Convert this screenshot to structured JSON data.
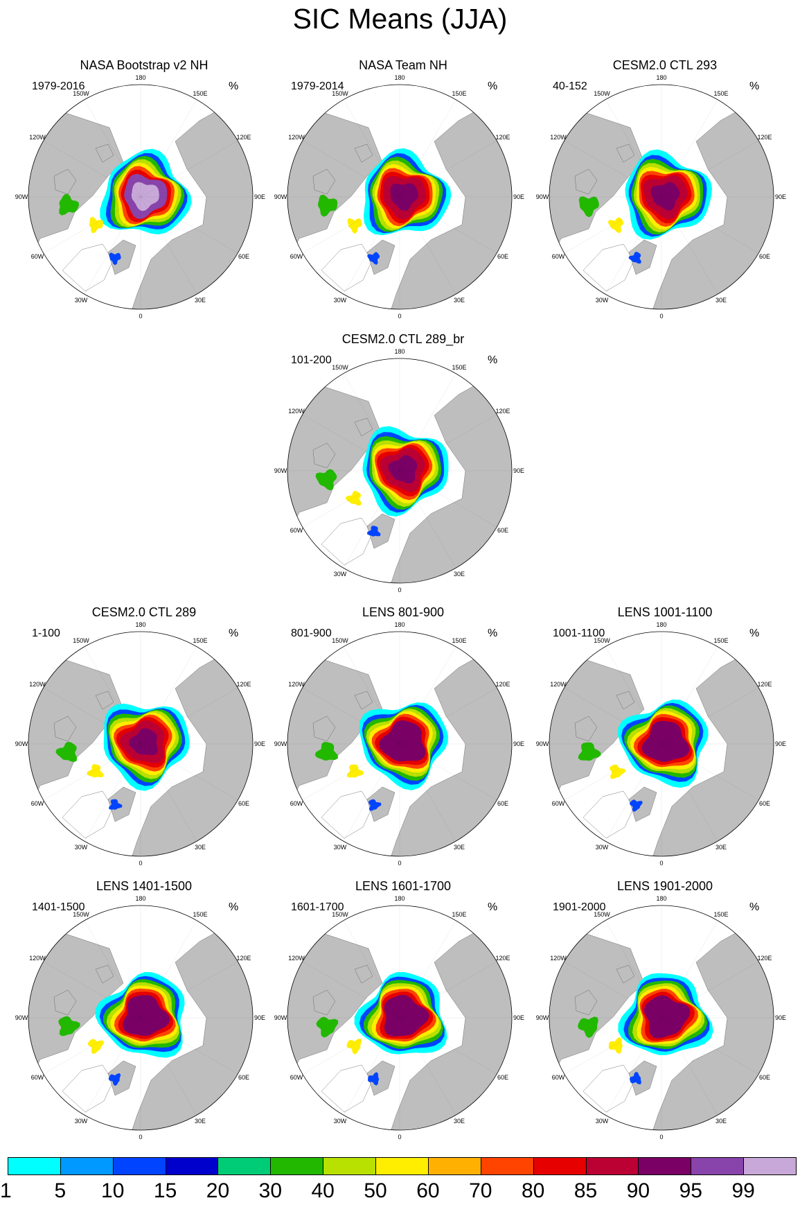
{
  "title": "SIC Means (JJA)",
  "panels": [
    {
      "title": "NASA Bootstrap v2 NH",
      "period": "1979-2016",
      "unit": "%",
      "variant": "boot"
    },
    {
      "title": "NASA Team NH",
      "period": "1979-2014",
      "unit": "%",
      "variant": "team"
    },
    {
      "title": "CESM2.0 CTL 293",
      "period": "40-152",
      "unit": "%",
      "variant": "cesm"
    },
    {
      "title": "CESM2.0 CTL 289_br",
      "period": "101-200",
      "unit": "%",
      "variant": "cesm"
    },
    {
      "title": "CESM2.0 CTL 289",
      "period": "1-100",
      "unit": "%",
      "variant": "cesm"
    },
    {
      "title": "LENS 801-900",
      "period": "801-900",
      "unit": "%",
      "variant": "lens"
    },
    {
      "title": "LENS 1001-1100",
      "period": "1001-1100",
      "unit": "%",
      "variant": "lens"
    },
    {
      "title": "LENS 1401-1500",
      "period": "1401-1500",
      "unit": "%",
      "variant": "lens"
    },
    {
      "title": "LENS 1601-1700",
      "period": "1601-1700",
      "unit": "%",
      "variant": "lens"
    },
    {
      "title": "LENS 1901-2000",
      "period": "1901-2000",
      "unit": "%",
      "variant": "lens"
    }
  ],
  "longitude_labels": [
    "180",
    "150E",
    "120E",
    "90E",
    "60E",
    "30E",
    "0",
    "30W",
    "60W",
    "90W",
    "120W",
    "150W"
  ],
  "chart_data": {
    "type": "heatmap",
    "title": "SIC Means (JJA)",
    "projection": "north polar stereographic",
    "units": "%",
    "colorbar": {
      "levels": [
        1,
        5,
        10,
        15,
        20,
        30,
        40,
        50,
        60,
        70,
        80,
        85,
        90,
        95,
        99
      ],
      "colors": [
        "#00ffff",
        "#0099ff",
        "#0044ff",
        "#0000cc",
        "#00cc77",
        "#22b800",
        "#b8e000",
        "#ffee00",
        "#ffb000",
        "#ff4400",
        "#e60000",
        "#bb0033",
        "#7a0066",
        "#8844aa",
        "#c8a8d8",
        "#c8a8d8"
      ]
    },
    "land_color": "#bebebe",
    "ocean_color": "#ffffff"
  }
}
